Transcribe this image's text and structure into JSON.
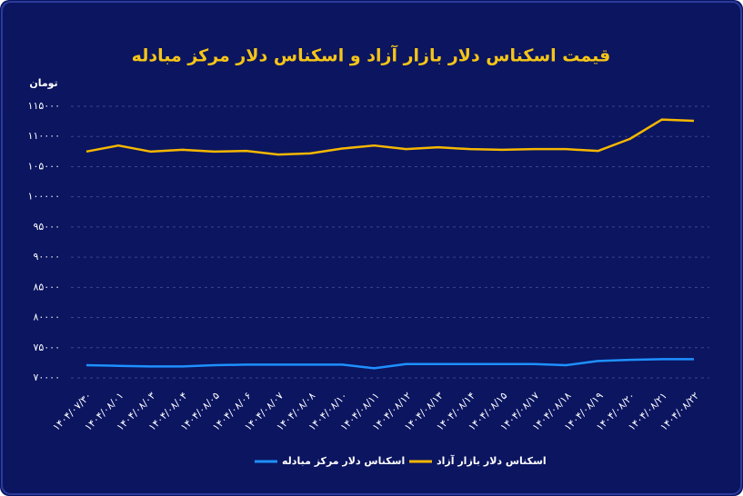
{
  "chart_data": {
    "type": "line",
    "title": "قیمت اسکناس دلار بازار آزاد و اسکناس دلار مرکز مبادله",
    "y_label": "تومان",
    "categories": [
      "۱۴۰۴/۰۷/۳۰",
      "۱۴۰۴/۰۸/۰۱",
      "۱۴۰۴/۰۸/۰۳",
      "۱۴۰۴/۰۸/۰۴",
      "۱۴۰۴/۰۸/۰۵",
      "۱۴۰۴/۰۸/۰۶",
      "۱۴۰۴/۰۸/۰۷",
      "۱۴۰۴/۰۸/۰۸",
      "۱۴۰۴/۰۸/۱۰",
      "۱۴۰۴/۰۸/۱۱",
      "۱۴۰۴/۰۸/۱۲",
      "۱۴۰۴/۰۸/۱۳",
      "۱۴۰۴/۰۸/۱۴",
      "۱۴۰۴/۰۸/۱۵",
      "۱۴۰۴/۰۸/۱۷",
      "۱۴۰۴/۰۸/۱۸",
      "۱۴۰۴/۰۸/۱۹",
      "۱۴۰۴/۰۸/۲۰",
      "۱۴۰۴/۰۸/۲۱",
      "۱۴۰۴/۰۸/۲۲"
    ],
    "series": [
      {
        "name": "اسکناس دلار مرکز مبادله",
        "color": "#1e90ff",
        "values": [
          72100,
          72000,
          71900,
          71900,
          72100,
          72200,
          72200,
          72200,
          72200,
          71600,
          72300,
          72300,
          72300,
          72300,
          72300,
          72100,
          72800,
          73000,
          73100,
          73100
        ]
      },
      {
        "name": "اسکناس دلار بازار آزاد",
        "color": "#f5b700",
        "values": [
          107500,
          108500,
          107500,
          107800,
          107500,
          107600,
          107000,
          107200,
          108000,
          108500,
          107900,
          108200,
          107900,
          107800,
          107900,
          107900,
          107600,
          109600,
          112800,
          112600
        ]
      }
    ],
    "ylim": [
      70000,
      115000
    ],
    "yticks": [
      {
        "value": 70000,
        "label": "۷۰۰۰۰"
      },
      {
        "value": 75000,
        "label": "۷۵۰۰۰"
      },
      {
        "value": 80000,
        "label": "۸۰۰۰۰"
      },
      {
        "value": 85000,
        "label": "۸۵۰۰۰"
      },
      {
        "value": 90000,
        "label": "۹۰۰۰۰"
      },
      {
        "value": 95000,
        "label": "۹۵۰۰۰"
      },
      {
        "value": 100000,
        "label": "۱۰۰۰۰۰"
      },
      {
        "value": 105000,
        "label": "۱۰۵۰۰۰"
      },
      {
        "value": 110000,
        "label": "۱۱۰۰۰۰"
      },
      {
        "value": 115000,
        "label": "۱۱۵۰۰۰"
      }
    ],
    "grid": true
  }
}
